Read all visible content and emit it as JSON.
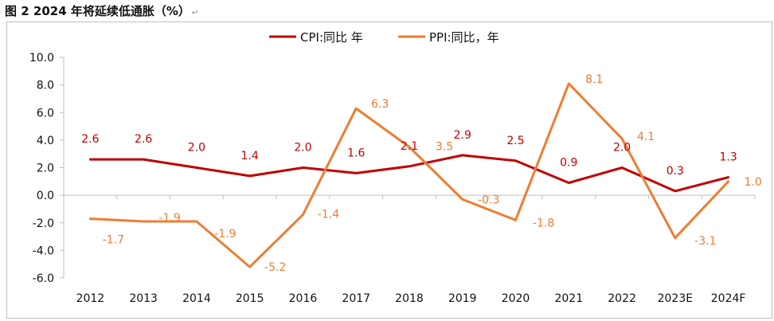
{
  "figure": {
    "title": "图 2  2024 年将延续低通胀（%）",
    "title_mark": "↵"
  },
  "colors": {
    "cpi": "#c00000",
    "ppi": "#ed7d31",
    "axis": "#bfbfbf",
    "text": "#111111"
  },
  "chart_data": {
    "type": "line",
    "title": "2024 年将延续低通胀（%）",
    "categories": [
      "2012",
      "2013",
      "2014",
      "2015",
      "2016",
      "2017",
      "2018",
      "2019",
      "2020",
      "2021",
      "2022",
      "2023E",
      "2024F"
    ],
    "y_ticks": [
      "10.0",
      "8.0",
      "6.0",
      "4.0",
      "2.0",
      "0.0",
      "-2.0",
      "-4.0",
      "-6.0"
    ],
    "ylim": [
      -6,
      10
    ],
    "grid": false,
    "legend": "top-center",
    "series": [
      {
        "name": "CPI:同比 年",
        "color": "#c00000",
        "values": [
          2.6,
          2.6,
          2.0,
          1.4,
          2.0,
          1.6,
          2.1,
          2.9,
          2.5,
          0.9,
          2.0,
          0.3,
          1.3
        ],
        "labels": [
          "2.6",
          "2.6",
          "2.0",
          "1.4",
          "2.0",
          "1.6",
          "2.1",
          "2.9",
          "2.5",
          "0.9",
          "2.0",
          "0.3",
          "1.3"
        ]
      },
      {
        "name": "PPI:同比，年",
        "color": "#ed7d31",
        "values": [
          -1.7,
          -1.9,
          -1.9,
          -5.2,
          -1.4,
          6.3,
          3.5,
          -0.3,
          -1.8,
          8.1,
          4.1,
          -3.1,
          1.0
        ],
        "labels": [
          "-1.7",
          "-1.9",
          "-1.9",
          "-5.2",
          "-1.4",
          "6.3",
          "3.5",
          "-0.3",
          "-1.8",
          "8.1",
          "4.1",
          "-3.1",
          "1.0"
        ]
      }
    ]
  }
}
